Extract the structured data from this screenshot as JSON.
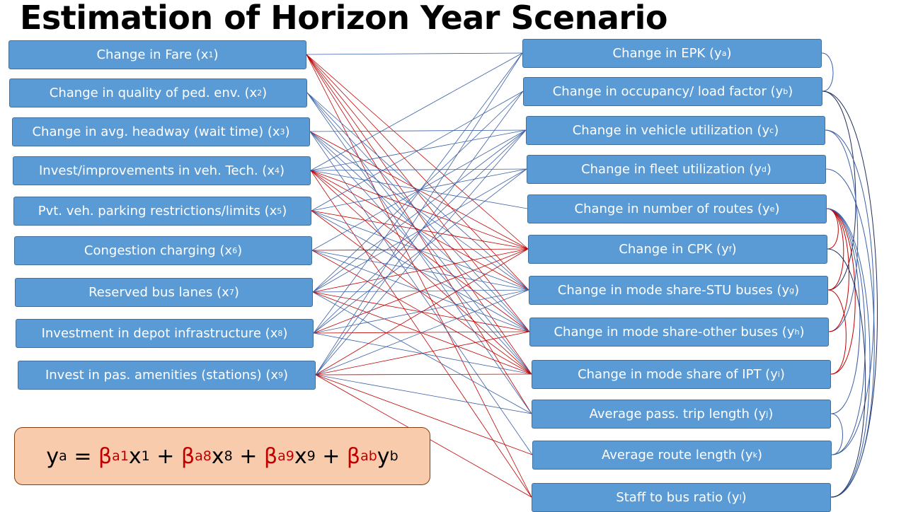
{
  "title": "Estimation of Horizon Year Scenario",
  "inputs": [
    {
      "text": "Change in Fare (x",
      "sub": "1",
      "close": ")"
    },
    {
      "text": "Change in quality of ped. env. (x",
      "sub": "2",
      "close": ")"
    },
    {
      "text": "Change in avg. headway (wait time) (x",
      "sub": "3",
      "close": ")"
    },
    {
      "text": "Invest/improvements in veh. Tech. (x",
      "sub": "4",
      "close": ")"
    },
    {
      "text": "Pvt. veh. parking restrictions/limits (x",
      "sub": "5",
      "close": ")"
    },
    {
      "text": "Congestion charging (x",
      "sub": "6",
      "close": ")"
    },
    {
      "text": "Reserved bus lanes (x",
      "sub": "7",
      "close": ")"
    },
    {
      "text": "Investment in depot infrastructure (x",
      "sub": "8",
      "close": ")"
    },
    {
      "text": "Invest in pas. amenities (stations) (x",
      "sub": "9",
      "close": ")"
    }
  ],
  "outputs": [
    {
      "text": "Change in EPK (y",
      "sub": "a",
      "close": ")"
    },
    {
      "text": "Change in occupancy/ load factor (y",
      "sub": "b",
      "close": ")"
    },
    {
      "text": "Change in vehicle utilization (y",
      "sub": "c",
      "close": ")"
    },
    {
      "text": "Change in fleet utilization (y",
      "sub": "d",
      "close": ")"
    },
    {
      "text": "Change in number of routes (y",
      "sub": "e",
      "close": ")"
    },
    {
      "text": "Change in CPK (y",
      "sub": "f",
      "close": ")"
    },
    {
      "text": "Change in mode share-STU buses (y",
      "sub": "g",
      "close": ")"
    },
    {
      "text": "Change in mode share-other buses (y",
      "sub": "h",
      "close": ")"
    },
    {
      "text": "Change in mode share of IPT (y",
      "sub": "i",
      "close": ")"
    },
    {
      "text": "Average pass. trip length (y",
      "sub": "j",
      "close": ")"
    },
    {
      "text": "Average route length (y",
      "sub": "k",
      "close": ")"
    },
    {
      "text": "Staff to bus ratio (y",
      "sub": "l",
      "close": ")"
    }
  ],
  "equation": {
    "lhs": "y",
    "lhs_sub": "a",
    "eq": " = ",
    "terms": [
      {
        "coef": "β",
        "coef_sub": "a1",
        "var": "x",
        "var_sub": "1"
      },
      {
        "coef": "β",
        "coef_sub": "a8",
        "var": "x",
        "var_sub": "8"
      },
      {
        "coef": "β",
        "coef_sub": "a9",
        "var": "x",
        "var_sub": "9"
      },
      {
        "coef": "β",
        "coef_sub": "ab",
        "var": "y",
        "var_sub": "b"
      }
    ],
    "plus": " + "
  },
  "colors": {
    "box_fill": "#5b9bd5",
    "box_border": "#41719c",
    "link_blue": "#3a5fa5",
    "link_red": "#c00000",
    "link_navy": "#1f2d5a",
    "equation_fill": "#f8cbad",
    "equation_border": "#843c0c",
    "coefficient": "#c00000"
  },
  "links": [
    {
      "from": "x1",
      "to": "ya",
      "color": "blue"
    },
    {
      "from": "x1",
      "to": "yf",
      "color": "red"
    },
    {
      "from": "x1",
      "to": "yg",
      "color": "red"
    },
    {
      "from": "x1",
      "to": "yh",
      "color": "red"
    },
    {
      "from": "x1",
      "to": "yi",
      "color": "red"
    },
    {
      "from": "x1",
      "to": "yj",
      "color": "red"
    },
    {
      "from": "x1",
      "to": "yl",
      "color": "red"
    },
    {
      "from": "x2",
      "to": "yg",
      "color": "blue"
    },
    {
      "from": "x2",
      "to": "yh",
      "color": "blue"
    },
    {
      "from": "x2",
      "to": "yi",
      "color": "blue"
    },
    {
      "from": "x2",
      "to": "yj",
      "color": "blue"
    },
    {
      "from": "x3",
      "to": "yc",
      "color": "blue"
    },
    {
      "from": "x3",
      "to": "yf",
      "color": "red"
    },
    {
      "from": "x3",
      "to": "yg",
      "color": "blue"
    },
    {
      "from": "x3",
      "to": "yh",
      "color": "blue"
    },
    {
      "from": "x3",
      "to": "yi",
      "color": "blue"
    },
    {
      "from": "x3",
      "to": "yk",
      "color": "blue"
    },
    {
      "from": "x4",
      "to": "ya",
      "color": "blue"
    },
    {
      "from": "x4",
      "to": "yc",
      "color": "blue"
    },
    {
      "from": "x4",
      "to": "yd",
      "color": "blue"
    },
    {
      "from": "x4",
      "to": "ye",
      "color": "blue"
    },
    {
      "from": "x4",
      "to": "yf",
      "color": "red"
    },
    {
      "from": "x4",
      "to": "yg",
      "color": "red"
    },
    {
      "from": "x4",
      "to": "yh",
      "color": "red"
    },
    {
      "from": "x4",
      "to": "yi",
      "color": "red"
    },
    {
      "from": "x4",
      "to": "yl",
      "color": "red"
    },
    {
      "from": "x5",
      "to": "yb",
      "color": "blue"
    },
    {
      "from": "x5",
      "to": "yd",
      "color": "blue"
    },
    {
      "from": "x5",
      "to": "yf",
      "color": "red"
    },
    {
      "from": "x5",
      "to": "yg",
      "color": "blue"
    },
    {
      "from": "x5",
      "to": "yh",
      "color": "blue"
    },
    {
      "from": "x5",
      "to": "yi",
      "color": "red"
    },
    {
      "from": "x6",
      "to": "yc",
      "color": "blue"
    },
    {
      "from": "x6",
      "to": "yf",
      "color": "red"
    },
    {
      "from": "x6",
      "to": "yg",
      "color": "blue"
    },
    {
      "from": "x6",
      "to": "yh",
      "color": "blue"
    },
    {
      "from": "x6",
      "to": "yi",
      "color": "red"
    },
    {
      "from": "x7",
      "to": "yb",
      "color": "blue"
    },
    {
      "from": "x7",
      "to": "yc",
      "color": "blue"
    },
    {
      "from": "x7",
      "to": "yd",
      "color": "blue"
    },
    {
      "from": "x7",
      "to": "yf",
      "color": "red"
    },
    {
      "from": "x7",
      "to": "yg",
      "color": "blue"
    },
    {
      "from": "x7",
      "to": "yh",
      "color": "red"
    },
    {
      "from": "x7",
      "to": "yi",
      "color": "red"
    },
    {
      "from": "x7",
      "to": "yj",
      "color": "blue"
    },
    {
      "from": "x8",
      "to": "ya",
      "color": "blue"
    },
    {
      "from": "x8",
      "to": "yc",
      "color": "blue"
    },
    {
      "from": "x8",
      "to": "yd",
      "color": "blue"
    },
    {
      "from": "x8",
      "to": "yf",
      "color": "red"
    },
    {
      "from": "x8",
      "to": "yg",
      "color": "blue"
    },
    {
      "from": "x8",
      "to": "yh",
      "color": "red"
    },
    {
      "from": "x8",
      "to": "yi",
      "color": "blue"
    },
    {
      "from": "x9",
      "to": "ya",
      "color": "blue"
    },
    {
      "from": "x9",
      "to": "yb",
      "color": "blue"
    },
    {
      "from": "x9",
      "to": "yc",
      "color": "blue"
    },
    {
      "from": "x9",
      "to": "yf",
      "color": "red"
    },
    {
      "from": "x9",
      "to": "yg",
      "color": "blue"
    },
    {
      "from": "x9",
      "to": "yh",
      "color": "red"
    },
    {
      "from": "x9",
      "to": "yi",
      "color": "red"
    },
    {
      "from": "x9",
      "to": "yj",
      "color": "blue"
    },
    {
      "from": "x9",
      "to": "yk",
      "color": "red"
    },
    {
      "from": "x9",
      "to": "yl",
      "color": "red"
    }
  ],
  "feedback_links": [
    {
      "from": "ya",
      "to": "yb",
      "color": "blue"
    },
    {
      "from": "yb",
      "to": "yg",
      "color": "navy"
    },
    {
      "from": "yb",
      "to": "yl",
      "color": "navy"
    },
    {
      "from": "yc",
      "to": "yh",
      "color": "blue"
    },
    {
      "from": "yc",
      "to": "yk",
      "color": "blue"
    },
    {
      "from": "yd",
      "to": "yl",
      "color": "blue"
    },
    {
      "from": "ye",
      "to": "yf",
      "color": "red"
    },
    {
      "from": "ye",
      "to": "yg",
      "color": "red"
    },
    {
      "from": "ye",
      "to": "yh",
      "color": "red"
    },
    {
      "from": "ye",
      "to": "yi",
      "color": "red"
    },
    {
      "from": "ye",
      "to": "yj",
      "color": "blue"
    },
    {
      "from": "ye",
      "to": "yk",
      "color": "blue"
    },
    {
      "from": "ye",
      "to": "yl",
      "color": "blue"
    },
    {
      "from": "yf",
      "to": "yl",
      "color": "navy"
    },
    {
      "from": "yg",
      "to": "yi",
      "color": "red"
    },
    {
      "from": "yj",
      "to": "yk",
      "color": "blue"
    }
  ]
}
